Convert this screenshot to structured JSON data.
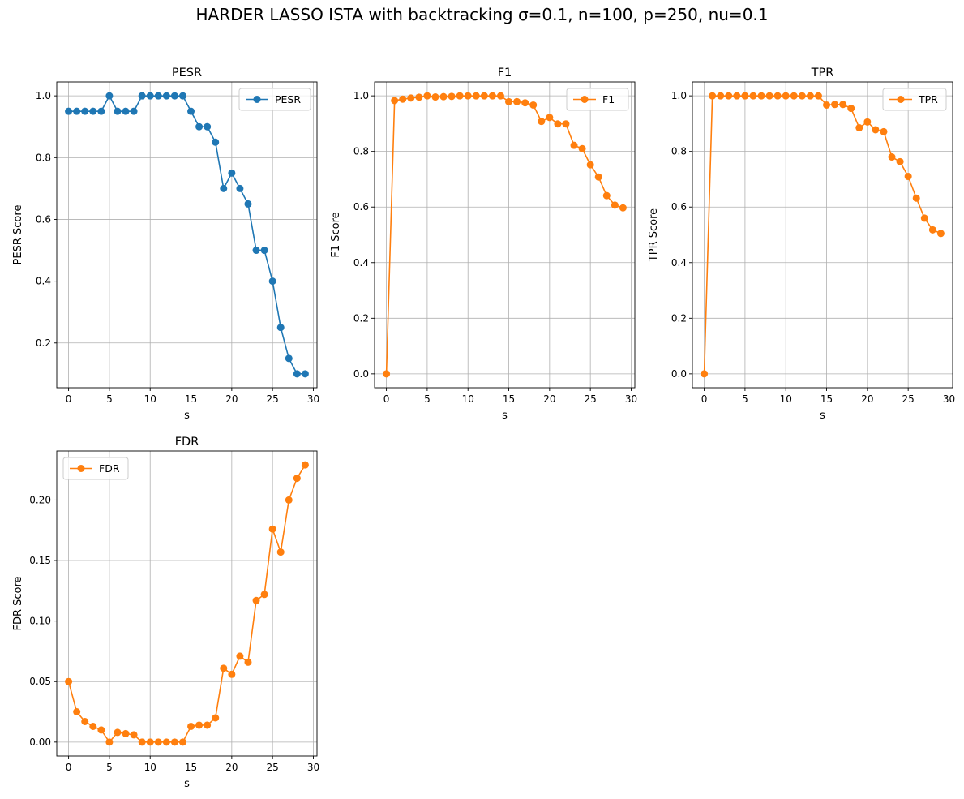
{
  "figure": {
    "suptitle": "HARDER LASSO ISTA with backtracking σ=0.1, n=100, p=250, nu=0.1"
  },
  "chart_data": [
    {
      "type": "line",
      "title": "PESR",
      "xlabel": "s",
      "ylabel": "PESR Score",
      "xlim": [
        -1.45,
        30.45
      ],
      "ylim": [
        0.055,
        1.045
      ],
      "xticks": [
        0,
        5,
        10,
        15,
        20,
        25,
        30
      ],
      "yticks": [
        0.2,
        0.4,
        0.6,
        0.8,
        1.0
      ],
      "ytick_labels": [
        "0.2",
        "0.4",
        "0.6",
        "0.8",
        "1.0"
      ],
      "grid": true,
      "legend": "upper right",
      "color": "#1f77b4",
      "x": [
        0,
        1,
        2,
        3,
        4,
        5,
        6,
        7,
        8,
        9,
        10,
        11,
        12,
        13,
        14,
        15,
        16,
        17,
        18,
        19,
        20,
        21,
        22,
        23,
        24,
        25,
        26,
        27,
        28,
        29
      ],
      "series": [
        {
          "name": "PESR",
          "values": [
            0.95,
            0.95,
            0.95,
            0.95,
            0.95,
            1.0,
            0.95,
            0.95,
            0.95,
            1.0,
            1.0,
            1.0,
            1.0,
            1.0,
            1.0,
            0.95,
            0.9,
            0.9,
            0.85,
            0.7,
            0.75,
            0.7,
            0.65,
            0.5,
            0.5,
            0.4,
            0.25,
            0.15,
            0.1,
            0.1
          ]
        }
      ]
    },
    {
      "type": "line",
      "title": "F1",
      "xlabel": "s",
      "ylabel": "F1 Score",
      "xlim": [
        -1.45,
        30.45
      ],
      "ylim": [
        -0.05,
        1.05
      ],
      "xticks": [
        0,
        5,
        10,
        15,
        20,
        25,
        30
      ],
      "yticks": [
        0.0,
        0.2,
        0.4,
        0.6,
        0.8,
        1.0
      ],
      "ytick_labels": [
        "0.0",
        "0.2",
        "0.4",
        "0.6",
        "0.8",
        "1.0"
      ],
      "grid": true,
      "legend": "upper right",
      "color": "#ff7f0e",
      "x": [
        0,
        1,
        2,
        3,
        4,
        5,
        6,
        7,
        8,
        9,
        10,
        11,
        12,
        13,
        14,
        15,
        16,
        17,
        18,
        19,
        20,
        21,
        22,
        23,
        24,
        25,
        26,
        27,
        28,
        29
      ],
      "series": [
        {
          "name": "F1",
          "values": [
            0.0,
            0.983,
            0.988,
            0.992,
            0.995,
            1.0,
            0.996,
            0.997,
            0.998,
            1.0,
            1.0,
            1.0,
            1.0,
            1.0,
            1.0,
            0.979,
            0.979,
            0.975,
            0.967,
            0.908,
            0.922,
            0.899,
            0.899,
            0.822,
            0.81,
            0.752,
            0.708,
            0.641,
            0.607,
            0.597
          ]
        }
      ]
    },
    {
      "type": "line",
      "title": "TPR",
      "xlabel": "s",
      "ylabel": "TPR Score",
      "xlim": [
        -1.45,
        30.45
      ],
      "ylim": [
        -0.05,
        1.05
      ],
      "xticks": [
        0,
        5,
        10,
        15,
        20,
        25,
        30
      ],
      "yticks": [
        0.0,
        0.2,
        0.4,
        0.6,
        0.8,
        1.0
      ],
      "ytick_labels": [
        "0.0",
        "0.2",
        "0.4",
        "0.6",
        "0.8",
        "1.0"
      ],
      "grid": true,
      "legend": "upper right",
      "color": "#ff7f0e",
      "x": [
        0,
        1,
        2,
        3,
        4,
        5,
        6,
        7,
        8,
        9,
        10,
        11,
        12,
        13,
        14,
        15,
        16,
        17,
        18,
        19,
        20,
        21,
        22,
        23,
        24,
        25,
        26,
        27,
        28,
        29
      ],
      "series": [
        {
          "name": "TPR",
          "values": [
            0.0,
            1.0,
            1.0,
            1.0,
            1.0,
            1.0,
            1.0,
            1.0,
            1.0,
            1.0,
            1.0,
            1.0,
            1.0,
            1.0,
            1.0,
            0.967,
            0.969,
            0.969,
            0.955,
            0.885,
            0.906,
            0.878,
            0.871,
            0.78,
            0.763,
            0.71,
            0.632,
            0.56,
            0.518,
            0.505
          ]
        }
      ]
    },
    {
      "type": "line",
      "title": "FDR",
      "xlabel": "s",
      "ylabel": "FDR Score",
      "xlim": [
        -1.45,
        30.45
      ],
      "ylim": [
        -0.0115,
        0.2405
      ],
      "xticks": [
        0,
        5,
        10,
        15,
        20,
        25,
        30
      ],
      "yticks": [
        0.0,
        0.05,
        0.1,
        0.15,
        0.2
      ],
      "ytick_labels": [
        "0.00",
        "0.05",
        "0.10",
        "0.15",
        "0.20"
      ],
      "grid": true,
      "legend": "upper left",
      "color": "#ff7f0e",
      "x": [
        0,
        1,
        2,
        3,
        4,
        5,
        6,
        7,
        8,
        9,
        10,
        11,
        12,
        13,
        14,
        15,
        16,
        17,
        18,
        19,
        20,
        21,
        22,
        23,
        24,
        25,
        26,
        27,
        28,
        29
      ],
      "series": [
        {
          "name": "FDR",
          "values": [
            0.05,
            0.025,
            0.017,
            0.013,
            0.01,
            0.0,
            0.008,
            0.007,
            0.006,
            0.0,
            0.0,
            0.0,
            0.0,
            0.0,
            0.0,
            0.013,
            0.014,
            0.014,
            0.02,
            0.061,
            0.056,
            0.071,
            0.066,
            0.117,
            0.122,
            0.176,
            0.157,
            0.2,
            0.218,
            0.229
          ]
        }
      ]
    }
  ]
}
